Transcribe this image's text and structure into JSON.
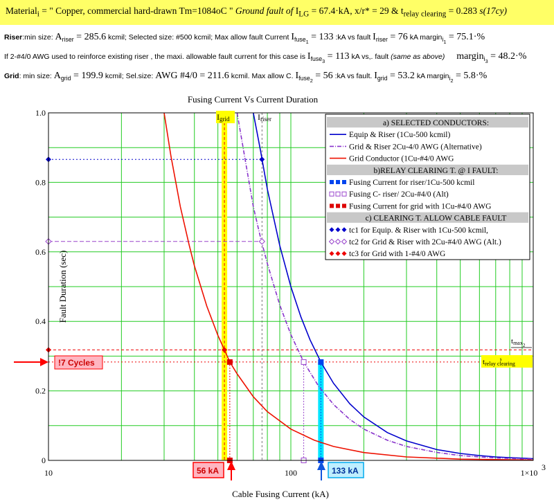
{
  "header": {
    "l1_a": "Material",
    "l1_sub": "i",
    "l1_b": " = \" Copper, commercial hard-drawn Tm=1084oC \"",
    "l1_c": "Ground fault of",
    "l1_d": "I",
    "l1_d_sub": "LG",
    "l1_e": " = 67.4·kA,  x/r* = 29  & ",
    "l1_f": "t",
    "l1_f_sub": "relay clearing",
    "l1_g": " = 0.283",
    "l1_h": "s(17cy)"
  },
  "rows": {
    "riser": {
      "label": "Riser",
      "a": ":min size:",
      "b": "A",
      "b_sub": "riser",
      "c": " = 285.6",
      "d": "kcmil;  Selected size: #500 kcmil;  Max allow fault Current",
      "e": "I",
      "e_sub": "fuse",
      "e_sub2": "1",
      "f": " = 133",
      "g": ":kA vs fault",
      "h": "I",
      "h_sub": "riser",
      "i": " = 76",
      "j": "kA  margin",
      "j_sub": "i",
      "j_sub2": "1",
      "k": " = 75.1·%"
    },
    "alt": {
      "a": "If 2-#4/0 AWG used to reinforce existing riser , the maxi. allowable fault current for this case is",
      "b": "I",
      "b_sub": "fuse",
      "b_sub2": "3",
      "c": " = 113",
      "d": "kA vs,. fault",
      "e": "(same as above)",
      "f": "margin",
      "f_sub": "i",
      "f_sub2": "3",
      "g": " = 48.2·%"
    },
    "grid": {
      "label": "Grid",
      "a": ": min size:",
      "b": "A",
      "b_sub": "grid",
      "c": " = 199.9",
      "d": "kcmil; Sel.size:",
      "e": "AWG #4/0 = 211.6",
      "f": "kcmil. Max allow C.",
      "g": "I",
      "g_sub": "fuse",
      "g_sub2": "2",
      "h": " = 56",
      "i": ":kA vs fault.",
      "j": "I",
      "j_sub": "grid",
      "k": " = 53.2",
      "l": "kA margin",
      "l_sub": "i",
      "l_sub2": "2",
      "m": " = 5.8·%"
    }
  },
  "chart_data": {
    "type": "line",
    "title": "Fusing Current Vs Current Duration",
    "xlabel": "Cable Fusing Current (kA)",
    "ylabel": "Fault Duration (sec)",
    "x_scale": "log",
    "xlim": [
      10,
      1000
    ],
    "ylim": [
      0,
      1
    ],
    "grid": true,
    "x_tick_labels": [
      "10",
      "100",
      "1×10",
      "3"
    ],
    "y_tick_labels": [
      "0",
      "0.2",
      "0.4",
      "0.6",
      "0.8",
      "1.0"
    ],
    "series": [
      {
        "name": "Equip & Riser (1Cu-500 kcmil)",
        "color": "#0000cc",
        "style": "solid",
        "x": [
          70,
          75,
          80,
          90,
          100,
          110,
          120,
          133,
          150,
          175,
          200,
          250,
          300,
          400,
          500,
          600,
          700,
          800,
          1000
        ],
        "y": [
          1.0,
          0.89,
          0.78,
          0.618,
          0.5,
          0.413,
          0.347,
          0.283,
          0.222,
          0.163,
          0.125,
          0.08,
          0.056,
          0.031,
          0.02,
          0.014,
          0.01,
          0.008,
          0.005
        ]
      },
      {
        "name": "Grid & Riser 2Cu-4/0 AWG (Alternative)",
        "color": "#8833cc",
        "style": "dashdot",
        "x": [
          60,
          65,
          70,
          75,
          80,
          90,
          100,
          113,
          130,
          150,
          175,
          200,
          250,
          300,
          400,
          500,
          700,
          1000
        ],
        "y": [
          1.0,
          0.86,
          0.73,
          0.64,
          0.566,
          0.447,
          0.362,
          0.283,
          0.214,
          0.161,
          0.118,
          0.09,
          0.058,
          0.04,
          0.023,
          0.014,
          0.007,
          0.0035
        ]
      },
      {
        "name": "Grid Conductor (1Cu-#4/0 AWG",
        "color": "#ee1100",
        "style": "solid",
        "x": [
          30,
          32,
          35,
          38,
          40,
          45,
          50,
          53.2,
          56,
          60,
          70,
          80,
          100,
          125,
          150,
          200,
          300,
          500,
          1000
        ],
        "y": [
          1.0,
          0.876,
          0.73,
          0.622,
          0.56,
          0.444,
          0.36,
          0.318,
          0.283,
          0.249,
          0.183,
          0.14,
          0.09,
          0.058,
          0.04,
          0.0225,
          0.01,
          0.0036,
          0.001
        ]
      }
    ],
    "relay_clearing_markers": [
      {
        "name": "Fusing Current for riser/1Cu-500 kcmil",
        "x": 133,
        "y": 0.283,
        "color": "#0044ee"
      },
      {
        "name": "Fusing C- riser/ 2Cu-#4/0 (Alt)",
        "x": 113,
        "y": 0.283,
        "color": "#9944cc"
      },
      {
        "name": "Fusing Current for grid with 1Cu-#4/0 AWG",
        "x": 56,
        "y": 0.283,
        "color": "#dd0000"
      }
    ],
    "cable_fault_markers": [
      {
        "name": "tc1 for Equip. & Riser with 1Cu-500 kcmil,",
        "x": 76,
        "y": 0.866,
        "color": "#0000cc"
      },
      {
        "name": "tc2 for Grid & Riser with 2Cu-#4/0 AWG (Alt.)",
        "x": 76,
        "y": 0.63,
        "color": "#9944cc"
      },
      {
        "name": "tc3 for Grid with 1-#4/0 AWG",
        "x": 53.2,
        "y": 0.318,
        "color": "#ee0000"
      }
    ],
    "legend": {
      "placement": "top-right",
      "header_a": "a) SELECTED CONDUCTORS:",
      "header_b": "b)RELAY CLEARING T. @ I FAULT:",
      "header_c": "c) CLEARING T. ALLOW CABLE FAULT"
    },
    "annotations": {
      "i_grid": "I",
      "i_grid_sub": "grid",
      "i_riser": "I",
      "i_riser_sub": "riser",
      "cycles_label": "!7 Cycles",
      "ka56_label": "56 kA",
      "ka133_label": "133 kA",
      "tmax": "t",
      "tmax_sub": "max",
      "tmax_sub2": "2",
      "trelay": "t",
      "trelay_sub": "relay clearing",
      "trelay_sub2": "s"
    },
    "colors": {
      "grid_lines": "#22cc22",
      "yellow_band": "#ffff00",
      "cyan_band": "#00e5ff",
      "label_fill": "#ffb6c1",
      "arrow_red": "#ff0000",
      "arrow_blue": "#1155dd"
    }
  }
}
